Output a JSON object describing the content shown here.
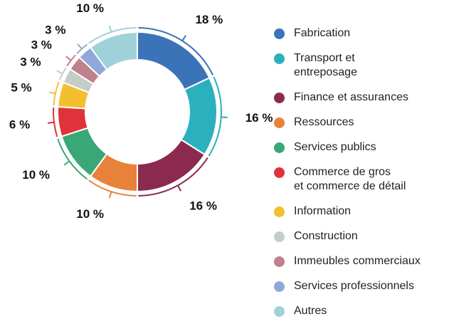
{
  "chart_data": {
    "type": "donut",
    "categories": [
      "Fabrication",
      "Transport et\nentreposage",
      "Finance et assurances",
      "Ressources",
      "Services publics",
      "Commerce de gros\net commerce de détail",
      "Information",
      "Construction",
      "Immeubles commerciaux",
      "Services professionnels",
      "Autres"
    ],
    "values": [
      18,
      16,
      16,
      10,
      10,
      6,
      5,
      3,
      3,
      3,
      10
    ],
    "value_labels": [
      "18 %",
      "16 %",
      "16 %",
      "10 %",
      "10 %",
      "6 %",
      "5 %",
      "3 %",
      "3 %",
      "3 %",
      "10 %"
    ],
    "colors": [
      "#3b73b9",
      "#2bb0be",
      "#8b2a4e",
      "#e8823a",
      "#3aa876",
      "#e0323a",
      "#f2c02f",
      "#c5cdc7",
      "#c0808c",
      "#8fa8d8",
      "#9fd1d8"
    ],
    "legend": "right"
  }
}
